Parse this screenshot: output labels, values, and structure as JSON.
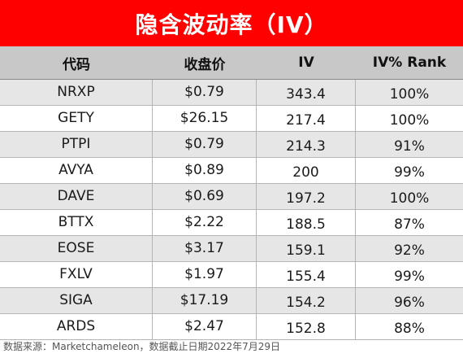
{
  "title": "隐含波动率（IV）",
  "headers": [
    "代码",
    "收盘价",
    "IV",
    "IV% Rank"
  ],
  "rows": [
    [
      "NRXP",
      "$0.79",
      "343.4",
      "100%"
    ],
    [
      "GETY",
      "$26.15",
      "217.4",
      "100%"
    ],
    [
      "PTPI",
      "$0.79",
      "214.3",
      "91%"
    ],
    [
      "AVYA",
      "$0.89",
      "200",
      "99%"
    ],
    [
      "DAVE",
      "$0.69",
      "197.2",
      "100%"
    ],
    [
      "BTTX",
      "$2.22",
      "188.5",
      "87%"
    ],
    [
      "EOSE",
      "$3.17",
      "159.1",
      "92%"
    ],
    [
      "FXLV",
      "$1.97",
      "155.4",
      "99%"
    ],
    [
      "SIGA",
      "$17.19",
      "154.2",
      "96%"
    ],
    [
      "ARDS",
      "$2.47",
      "152.8",
      "88%"
    ]
  ],
  "footer": "数据来源：Marketchameleon，数据截止日期2022年7月29日",
  "colors": {
    "title_bg": "#ff0000",
    "header_bg": "#c8c8c8",
    "stripe_bg": "#e6e6e6"
  }
}
